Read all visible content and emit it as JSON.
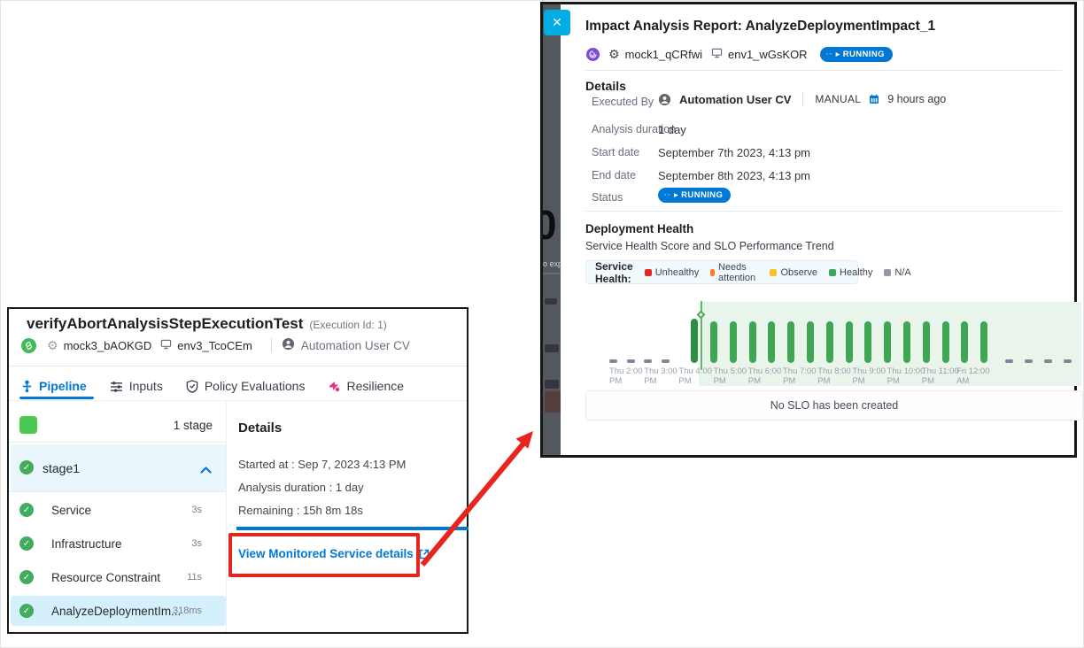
{
  "icons": {
    "close": "✕",
    "check": "✓",
    "gear": "⚙",
    "running_dots": "··",
    "running_arrow": "▸"
  },
  "left_panel": {
    "title": "verifyAbortAnalysisStepExecutionTest",
    "execution_id": "(Execution Id: 1)",
    "service": "mock3_bAOKGD",
    "environment": "env3_TcoCEm",
    "user": "Automation User CV",
    "tabs": [
      {
        "label": "Pipeline",
        "active": true
      },
      {
        "label": "Inputs",
        "active": false
      },
      {
        "label": "Policy Evaluations",
        "active": false
      },
      {
        "label": "Resilience",
        "active": false
      }
    ],
    "stage_count_label": "1 stage",
    "stage_name": "stage1",
    "steps": [
      {
        "name": "Service",
        "duration": "3s",
        "selected": false
      },
      {
        "name": "Infrastructure",
        "duration": "3s",
        "selected": false
      },
      {
        "name": "Resource Constraint",
        "duration": "11s",
        "selected": false
      },
      {
        "name": "AnalyzeDeploymentIm...",
        "duration": "318ms",
        "selected": true
      }
    ],
    "details": {
      "heading": "Details",
      "started_at": "Started at :  Sep 7, 2023 4:13 PM",
      "analysis_duration": "Analysis duration :  1 day",
      "remaining": "Remaining :  15h 8m 18s",
      "link_label": "View Monitored Service details"
    }
  },
  "right_panel": {
    "title": "Impact Analysis Report: AnalyzeDeploymentImpact_1",
    "service": "mock1_qCRfwi",
    "environment": "env1_wGsKOR",
    "status_badge": "RUNNING",
    "backdrop_zero": "0",
    "backdrop_text_fragment": "o expa",
    "details": {
      "heading": "Details",
      "rows": [
        {
          "label": "Executed By",
          "value": "Automation User CV",
          "extra": "MANUAL",
          "time": "9 hours ago"
        },
        {
          "label": "Analysis duration",
          "value": "1 day"
        },
        {
          "label": "Start date",
          "value": "September 7th 2023, 4:13 pm"
        },
        {
          "label": "End date",
          "value": "September 8th 2023, 4:13 pm"
        },
        {
          "label": "Status",
          "value": "RUNNING"
        }
      ]
    },
    "deployment_health": {
      "heading": "Deployment Health",
      "subtitle": "Service Health Score and SLO Performance Trend",
      "legend_title": "Service Health:",
      "empty_state": "No SLO has been created"
    }
  },
  "chart_data": {
    "type": "bar",
    "title": "Service Health Score and SLO Performance Trend",
    "xlabel": "",
    "ylabel": "Service Health Score",
    "grid": false,
    "legend_position": "top",
    "legend": [
      {
        "label": "Unhealthy",
        "color": "#e12a23"
      },
      {
        "label": "Needs attention",
        "color": "#ff7d26"
      },
      {
        "label": "Observe",
        "color": "#fcc026"
      },
      {
        "label": "Healthy",
        "color": "#3fa656"
      },
      {
        "label": "N/A",
        "color": "#9698a5"
      }
    ],
    "x_tick_labels": [
      "Thu 2:00 PM",
      "Thu 3:00 PM",
      "Thu 4:00 PM",
      "Thu 5:00 PM",
      "Thu 6:00 PM",
      "Thu 7:00 PM",
      "Thu 8:00 PM",
      "Thu 9:00 PM",
      "Thu 10:00 PM",
      "Thu 11:00 PM",
      "Fri 12:00 AM"
    ],
    "na_points_before": 4,
    "healthy_bar_count": 16,
    "na_points_after": 4,
    "series": [
      {
        "name": "Service Health",
        "values": [
          null,
          null,
          null,
          null,
          100,
          100,
          100,
          100,
          100,
          100,
          100,
          100,
          100,
          100,
          100,
          100,
          100,
          100,
          100,
          100,
          null,
          null,
          null,
          null
        ]
      }
    ],
    "analysis_start_marker": "Thu 4:00 PM",
    "bar_color": "#3fa656",
    "first_bar_color": "#2e8f44",
    "na_color": "#7c8797",
    "region_color": "#e9f5ea"
  }
}
